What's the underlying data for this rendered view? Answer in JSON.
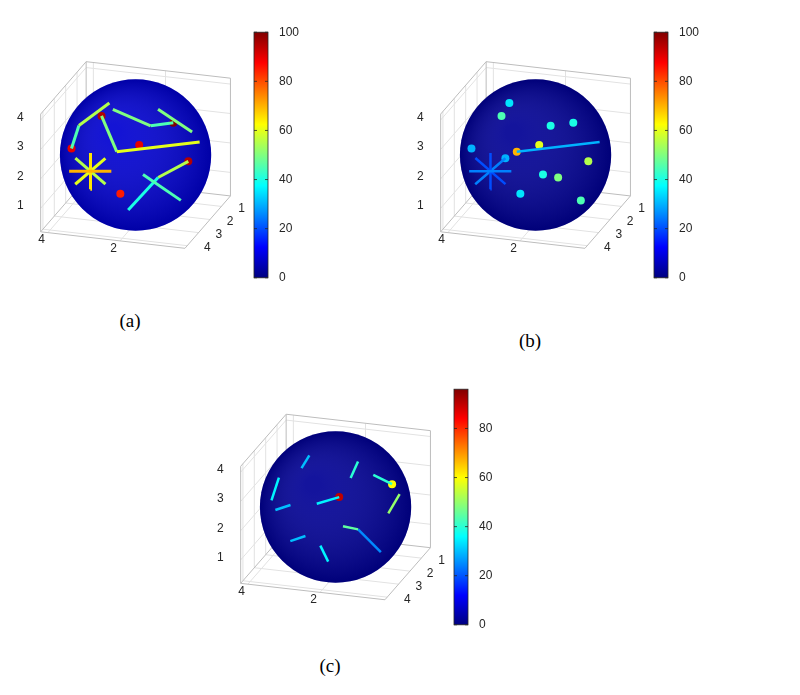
{
  "chart_data": [
    {
      "type": "sphere",
      "title": "(a)",
      "grid": true,
      "xlim": [
        0.2,
        4.2
      ],
      "xticks": [
        2,
        4
      ],
      "ylim": [
        0.2,
        4.2
      ],
      "yticks": [
        1,
        2,
        3,
        4
      ],
      "zlim": [
        0.2,
        4.2
      ],
      "zticks": [
        1,
        2,
        3,
        4
      ],
      "sphere": {
        "center": [
          2.2,
          2.2,
          2.2
        ],
        "radius": 2,
        "background_value": 8
      },
      "colorbar": {
        "lim": [
          0,
          100
        ],
        "ticks": [
          0,
          20,
          40,
          60,
          80,
          100
        ]
      },
      "lines": [
        {
          "points": [
            [
              3.59,
              3.63,
              2.09
            ],
            [
              2.25,
              4.17,
              2.52
            ]
          ],
          "value": 70
        },
        {
          "points": [
            [
              2.88,
              4.02,
              1.75
            ],
            [
              2.91,
              3.91,
              2.93
            ]
          ],
          "value": 65
        },
        {
          "points": [
            [
              3.39,
              3.73,
              1.72
            ],
            [
              2.45,
              4.06,
              2.88
            ]
          ],
          "value": 60
        },
        {
          "points": [
            [
              3.38,
              3.75,
              2.62
            ],
            [
              2.41,
              4.18,
              2.06
            ]
          ],
          "value": 55
        },
        {
          "points": [
            [
              2.16,
              3.98,
              3.11
            ],
            [
              0.37,
              2.37,
              2.97
            ]
          ],
          "value": 60
        },
        {
          "points": [
            [
              2.6,
              2.93,
              4.02
            ],
            [
              1.46,
              3.22,
              3.75
            ]
          ],
          "value": 50
        },
        {
          "points": [
            [
              3.48,
              3.12,
              3.43
            ],
            [
              2.8,
              2.6,
              4.06
            ]
          ],
          "value": 55
        },
        {
          "points": [
            [
              1.42,
              4.02,
              2.46
            ],
            [
              0.67,
              3.07,
              1.26
            ]
          ],
          "value": 45
        },
        {
          "points": [
            [
              1.46,
              2.57,
              4.02
            ],
            [
              0.56,
              2.43,
              3.31
            ]
          ],
          "value": 50
        },
        {
          "points": [
            [
              1.89,
              3.83,
              1.1
            ],
            [
              1.06,
              3.83,
              2.32
            ]
          ],
          "value": 40
        },
        {
          "points": [
            [
              1.46,
              3.22,
              3.75
            ],
            [
              0.99,
              2.72,
              3.7
            ]
          ],
          "value": 45
        },
        {
          "points": [
            [
              2.16,
              3.98,
              3.11
            ],
            [
              2.85,
              3.13,
              3.85
            ]
          ],
          "value": 50
        },
        {
          "points": [
            [
              0.46,
              3.08,
              2.62
            ],
            [
              1.06,
              3.83,
              2.32
            ]
          ],
          "value": 55
        },
        {
          "points": [
            [
              3.56,
              3.52,
              2.82
            ],
            [
              3.48,
              3.12,
              3.43
            ]
          ],
          "value": 45
        }
      ],
      "spots": [
        {
          "position": [
            2.85,
            3.13,
            3.85
          ],
          "value": 95
        },
        {
          "position": [
            1.61,
            3.75,
            3.31
          ],
          "value": 90
        },
        {
          "position": [
            0.99,
            2.72,
            3.7
          ],
          "value": 100
        },
        {
          "position": [
            2.01,
            4.14,
            1.77
          ],
          "value": 85
        },
        {
          "position": [
            0.46,
            3.08,
            2.62
          ],
          "value": 95
        },
        {
          "position": [
            3.56,
            3.52,
            2.82
          ],
          "value": 90
        }
      ]
    },
    {
      "type": "sphere",
      "title": "(b)",
      "grid": true,
      "xlim": [
        0.2,
        4.2
      ],
      "xticks": [
        2,
        4
      ],
      "ylim": [
        0.2,
        4.2
      ],
      "yticks": [
        1,
        2,
        3,
        4
      ],
      "zlim": [
        0.2,
        4.2
      ],
      "zticks": [
        1,
        2,
        3,
        4
      ],
      "sphere": {
        "center": [
          2.2,
          2.2,
          2.2
        ],
        "radius": 2,
        "background_value": 2
      },
      "colorbar": {
        "lim": [
          0,
          100
        ],
        "ticks": [
          0,
          20,
          40,
          60,
          80,
          100
        ]
      },
      "lines": [
        {
          "points": [
            [
              3.59,
              3.63,
              2.09
            ],
            [
              2.25,
              4.17,
              2.52
            ]
          ],
          "value": 25
        },
        {
          "points": [
            [
              2.88,
              4.02,
              1.75
            ],
            [
              2.91,
              3.91,
              2.93
            ]
          ],
          "value": 20
        },
        {
          "points": [
            [
              3.39,
              3.73,
              1.72
            ],
            [
              2.45,
              4.06,
              2.88
            ]
          ],
          "value": 25
        },
        {
          "points": [
            [
              3.38,
              3.75,
              2.62
            ],
            [
              2.41,
              4.18,
              2.06
            ]
          ],
          "value": 20
        },
        {
          "points": [
            [
              2.16,
              3.98,
              3.11
            ],
            [
              0.37,
              2.37,
              2.97
            ]
          ],
          "value": 30
        }
      ],
      "spots": [
        {
          "position": [
            2.85,
            3.13,
            3.85
          ],
          "value": 45
        },
        {
          "position": [
            1.61,
            3.75,
            3.31
          ],
          "value": 60
        },
        {
          "position": [
            0.99,
            2.72,
            3.7
          ],
          "value": 40
        },
        {
          "position": [
            2.01,
            4.14,
            1.77
          ],
          "value": 35
        },
        {
          "position": [
            0.46,
            3.08,
            2.62
          ],
          "value": 55
        },
        {
          "position": [
            3.56,
            3.52,
            2.82
          ],
          "value": 30
        },
        {
          "position": [
            2.16,
            3.98,
            3.11
          ],
          "value": 70
        },
        {
          "position": [
            1.46,
            3.22,
            3.75
          ],
          "value": 40
        },
        {
          "position": [
            1.06,
            3.83,
            2.32
          ],
          "value": 50
        },
        {
          "position": [
            2.8,
            2.6,
            4.06
          ],
          "value": 35
        },
        {
          "position": [
            0.67,
            3.07,
            1.26
          ],
          "value": 45
        },
        {
          "position": [
            2.45,
            4.06,
            2.88
          ],
          "value": 30
        },
        {
          "position": [
            1.42,
            4.02,
            2.46
          ],
          "value": 40
        }
      ]
    },
    {
      "type": "sphere",
      "title": "(c)",
      "grid": true,
      "xlim": [
        0.2,
        4.2
      ],
      "xticks": [
        2,
        4
      ],
      "ylim": [
        0.2,
        4.2
      ],
      "yticks": [
        1,
        2,
        3,
        4
      ],
      "zlim": [
        0.2,
        4.2
      ],
      "zticks": [
        1,
        2,
        3,
        4
      ],
      "sphere": {
        "center": [
          2.2,
          2.2,
          2.2
        ],
        "radius": 2,
        "background_value": 2
      },
      "colorbar": {
        "lim": [
          0,
          96
        ],
        "ticks": [
          0,
          20,
          40,
          60,
          80
        ]
      },
      "lines": [
        {
          "points": [
            [
              2.16,
              3.98,
              3.11
            ],
            [
              1.61,
              3.75,
              3.31
            ]
          ],
          "value": 35
        },
        {
          "points": [
            [
              0.99,
              2.72,
              3.7
            ],
            [
              0.56,
              2.43,
              3.31
            ]
          ],
          "value": 40
        },
        {
          "points": [
            [
              2.85,
              3.13,
              3.85
            ],
            [
              2.8,
              2.6,
              4.06
            ]
          ],
          "value": 30
        },
        {
          "points": [
            [
              1.42,
              4.02,
              2.46
            ],
            [
              1.06,
              3.83,
              2.32
            ]
          ],
          "value": 45
        },
        {
          "points": [
            [
              2.01,
              4.14,
              1.77
            ],
            [
              1.89,
              3.83,
              1.1
            ]
          ],
          "value": 35
        },
        {
          "points": [
            [
              3.38,
              3.75,
              2.62
            ],
            [
              2.91,
              3.91,
              2.93
            ]
          ],
          "value": 30
        },
        {
          "points": [
            [
              1.46,
              3.22,
              3.75
            ],
            [
              1.46,
              2.57,
              4.02
            ]
          ],
          "value": 40
        },
        {
          "points": [
            [
              0.46,
              3.08,
              2.62
            ],
            [
              0.37,
              2.37,
              2.97
            ]
          ],
          "value": 50
        },
        {
          "points": [
            [
              2.41,
              4.18,
              2.06
            ],
            [
              2.88,
              4.02,
              1.75
            ]
          ],
          "value": 30
        },
        {
          "points": [
            [
              3.48,
              3.12,
              3.43
            ],
            [
              3.56,
              3.52,
              2.82
            ]
          ],
          "value": 35
        },
        {
          "points": [
            [
              0.67,
              3.07,
              1.26
            ],
            [
              1.06,
              3.83,
              2.32
            ]
          ],
          "value": 25
        }
      ],
      "spots": [
        {
          "position": [
            1.61,
            3.75,
            3.31
          ],
          "value": 90
        },
        {
          "position": [
            0.56,
            2.43,
            3.31
          ],
          "value": 60
        }
      ]
    }
  ]
}
